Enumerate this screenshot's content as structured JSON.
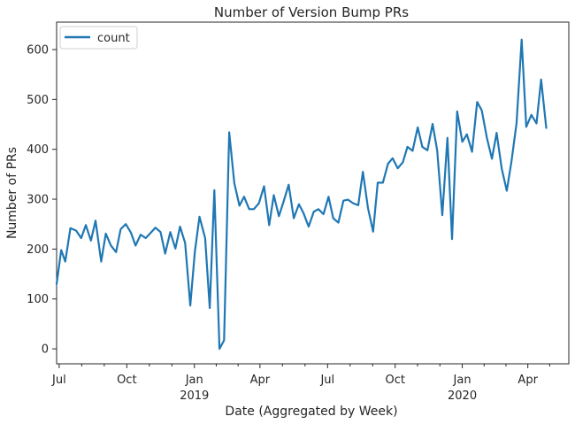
{
  "chart_data": {
    "type": "line",
    "title": "Number of Version Bump PRs",
    "xlabel": "Date (Aggregated by Week)",
    "ylabel": "Number of PRs",
    "ylim": [
      -30,
      655
    ],
    "yticks": [
      0,
      100,
      200,
      300,
      400,
      500,
      600
    ],
    "xlim": [
      0,
      100
    ],
    "xticks": [
      {
        "pos": 0.5,
        "label": "Jul",
        "sublabel": ""
      },
      {
        "pos": 13.7,
        "label": "Oct",
        "sublabel": ""
      },
      {
        "pos": 26.9,
        "label": "Jan",
        "sublabel": "2019"
      },
      {
        "pos": 39.7,
        "label": "Apr",
        "sublabel": ""
      },
      {
        "pos": 52.9,
        "label": "Jul",
        "sublabel": ""
      },
      {
        "pos": 66.1,
        "label": "Oct",
        "sublabel": ""
      },
      {
        "pos": 79.2,
        "label": "Jan",
        "sublabel": "2020"
      },
      {
        "pos": 92.0,
        "label": "Apr",
        "sublabel": ""
      }
    ],
    "legend": {
      "label": "count",
      "placement": "upper-left"
    },
    "series": [
      {
        "name": "count",
        "color": "#1f77b4",
        "points": [
          [
            0,
            130
          ],
          [
            0.9,
            198
          ],
          [
            1.7,
            175
          ],
          [
            2.7,
            242
          ],
          [
            3.8,
            237
          ],
          [
            4.8,
            222
          ],
          [
            5.7,
            248
          ],
          [
            6.7,
            217
          ],
          [
            7.6,
            257
          ],
          [
            8.7,
            175
          ],
          [
            9.6,
            231
          ],
          [
            10.6,
            207
          ],
          [
            11.6,
            194
          ],
          [
            12.5,
            240
          ],
          [
            13.5,
            250
          ],
          [
            14.5,
            233
          ],
          [
            15.4,
            207
          ],
          [
            16.4,
            229
          ],
          [
            17.4,
            222
          ],
          [
            18.3,
            232
          ],
          [
            19.3,
            243
          ],
          [
            20.3,
            234
          ],
          [
            21.2,
            191
          ],
          [
            22.2,
            234
          ],
          [
            23.2,
            201
          ],
          [
            24.1,
            245
          ],
          [
            25.1,
            212
          ],
          [
            26.1,
            87
          ],
          [
            27.0,
            195
          ],
          [
            27.9,
            265
          ],
          [
            29.0,
            222
          ],
          [
            29.9,
            82
          ],
          [
            30.8,
            318
          ],
          [
            31.8,
            0
          ],
          [
            32.7,
            17
          ],
          [
            33.7,
            434
          ],
          [
            34.7,
            332
          ],
          [
            35.7,
            287
          ],
          [
            36.6,
            305
          ],
          [
            37.6,
            280
          ],
          [
            38.5,
            280
          ],
          [
            39.5,
            292
          ],
          [
            40.5,
            326
          ],
          [
            41.5,
            248
          ],
          [
            42.4,
            308
          ],
          [
            43.4,
            266
          ],
          [
            44.3,
            295
          ],
          [
            45.3,
            329
          ],
          [
            46.3,
            262
          ],
          [
            47.3,
            290
          ],
          [
            48.2,
            272
          ],
          [
            49.2,
            245
          ],
          [
            50.2,
            275
          ],
          [
            51.1,
            280
          ],
          [
            52.1,
            270
          ],
          [
            53.1,
            305
          ],
          [
            54.0,
            262
          ],
          [
            55.0,
            253
          ],
          [
            56.0,
            297
          ],
          [
            56.9,
            299
          ],
          [
            57.9,
            292
          ],
          [
            58.9,
            288
          ],
          [
            59.8,
            355
          ],
          [
            60.8,
            282
          ],
          [
            61.8,
            235
          ],
          [
            62.7,
            333
          ],
          [
            63.7,
            333
          ],
          [
            64.7,
            371
          ],
          [
            65.6,
            382
          ],
          [
            66.6,
            362
          ],
          [
            67.6,
            374
          ],
          [
            68.5,
            405
          ],
          [
            69.5,
            397
          ],
          [
            70.5,
            444
          ],
          [
            71.4,
            405
          ],
          [
            72.4,
            398
          ],
          [
            73.4,
            451
          ],
          [
            74.3,
            398
          ],
          [
            75.3,
            268
          ],
          [
            76.3,
            423
          ],
          [
            77.2,
            220
          ],
          [
            78.2,
            476
          ],
          [
            79.2,
            415
          ],
          [
            80.1,
            430
          ],
          [
            81.1,
            395
          ],
          [
            82.1,
            495
          ],
          [
            83.0,
            478
          ],
          [
            84.0,
            423
          ],
          [
            85.0,
            381
          ],
          [
            85.9,
            433
          ],
          [
            86.9,
            361
          ],
          [
            87.9,
            317
          ],
          [
            88.8,
            376
          ],
          [
            89.8,
            452
          ],
          [
            90.8,
            620
          ],
          [
            91.7,
            445
          ],
          [
            92.7,
            469
          ],
          [
            93.7,
            452
          ],
          [
            94.6,
            540
          ],
          [
            95.6,
            443
          ]
        ]
      }
    ]
  }
}
